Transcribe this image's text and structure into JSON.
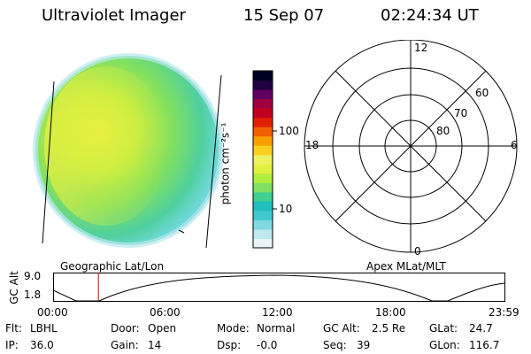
{
  "header": {
    "instrument": "Ultraviolet Imager",
    "date": "15 Sep 07",
    "time": "02:24:34 UT"
  },
  "colorbar": {
    "unit_label": "photon cm⁻²s⁻¹",
    "tick_100": "100",
    "tick_10": "10",
    "colors": [
      "#e8f4f8",
      "#c0e8f0",
      "#80d8e0",
      "#40c8d0",
      "#20c0c0",
      "#40d090",
      "#80e060",
      "#b0ee40",
      "#e0f040",
      "#f0f060",
      "#f8d020",
      "#f8a000",
      "#f06000",
      "#e02000",
      "#c00020",
      "#a00040",
      "#600060",
      "#200040",
      "#000020"
    ]
  },
  "image_panel": {
    "label": "Geographic Lat/Lon",
    "scale_hint": "log photon flux"
  },
  "polar_plot": {
    "label": "Apex MLat/MLT",
    "mlt_labels": {
      "top": "12",
      "left": "18",
      "right": "6",
      "bottom": "0"
    },
    "mlat_rings": [
      "60",
      "70",
      "80"
    ]
  },
  "altitude_plot": {
    "ylabel": "GC Alt",
    "yticks": [
      "9.0",
      "1.8"
    ],
    "xticks": [
      "00:00",
      "06:00",
      "12:00",
      "18:00",
      "23:59"
    ],
    "current_time_hours": 2.41
  },
  "status": {
    "flt_label": "Flt:",
    "flt_value": "LBHL",
    "ip_label": "IP:",
    "ip_value": "36.0",
    "door_label": "Door:",
    "door_value": "Open",
    "gain_label": "Gain:",
    "gain_value": "14",
    "mode_label": "Mode:",
    "mode_value": "Normal",
    "dsp_label": "Dsp:",
    "dsp_value": "-0.0",
    "gcalt_label": "GC Alt:",
    "gcalt_value": "2.5 Re",
    "seq_label": "Seq:",
    "seq_value": "39",
    "glat_label": "GLat:",
    "glat_value": "24.7",
    "glon_label": "GLon:",
    "glon_value": "116.7"
  }
}
